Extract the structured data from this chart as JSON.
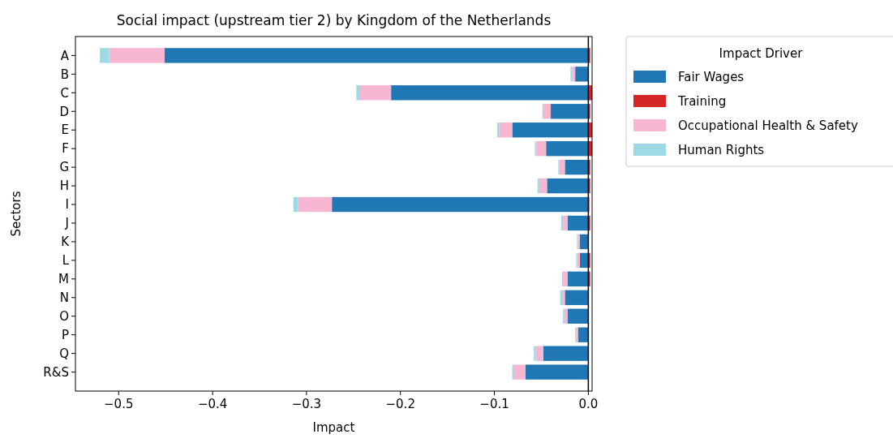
{
  "chart_data": {
    "type": "bar",
    "orientation": "horizontal",
    "stacked": true,
    "title": "Social impact (upstream tier 2) by Kingdom of the Netherlands",
    "xlabel": "Impact",
    "ylabel": "Sectors",
    "legend_title": "Impact Driver",
    "legend": "top right",
    "grid": false,
    "categories": [
      "A",
      "B",
      "C",
      "D",
      "E",
      "F",
      "G",
      "H",
      "I",
      "J",
      "K",
      "L",
      "M",
      "N",
      "O",
      "P",
      "Q",
      "R&S"
    ],
    "xlim": [
      -0.546,
      0.004
    ],
    "xticks": [
      {
        "value": -0.5,
        "label": "−0.5"
      },
      {
        "value": -0.4,
        "label": "−0.4"
      },
      {
        "value": -0.3,
        "label": "−0.3"
      },
      {
        "value": -0.2,
        "label": "−0.2"
      },
      {
        "value": -0.1,
        "label": "−0.1"
      },
      {
        "value": 0,
        "label": "0.0"
      }
    ],
    "ref_lines": [
      {
        "axis": "x",
        "value": 0,
        "color": "#000000"
      }
    ],
    "series": [
      {
        "name": "Fair Wages",
        "color": "#1f77b4",
        "values": [
          -0.451,
          -0.014,
          -0.21,
          -0.04,
          -0.081,
          -0.045,
          -0.025,
          -0.044,
          -0.273,
          -0.022,
          -0.009,
          -0.009,
          -0.022,
          -0.025,
          -0.022,
          -0.011,
          -0.048,
          -0.067
        ]
      },
      {
        "name": "Training",
        "color": "#d62728",
        "values": [
          0.002,
          null,
          0.004,
          0.002,
          0.004,
          0.004,
          0.002,
          0.002,
          0.001,
          0.002,
          null,
          0.002,
          0.002,
          null,
          null,
          null,
          null,
          null
        ]
      },
      {
        "name": "Occupational Health & Safety",
        "color": "#f7b6d2",
        "values": [
          -0.059,
          -0.003,
          -0.033,
          -0.008,
          -0.014,
          -0.011,
          -0.006,
          -0.008,
          -0.036,
          -0.005,
          -0.002,
          -0.003,
          -0.005,
          -0.003,
          -0.004,
          -0.002,
          -0.008,
          -0.012
        ]
      },
      {
        "name": "Human Rights",
        "color": "#9edae5",
        "values": [
          -0.01,
          -0.002,
          -0.004,
          -0.001,
          -0.002,
          -0.001,
          -0.001,
          -0.002,
          -0.005,
          -0.002,
          -0.001,
          -0.001,
          -0.001,
          -0.002,
          -0.001,
          -0.001,
          -0.002,
          -0.002
        ]
      }
    ]
  }
}
